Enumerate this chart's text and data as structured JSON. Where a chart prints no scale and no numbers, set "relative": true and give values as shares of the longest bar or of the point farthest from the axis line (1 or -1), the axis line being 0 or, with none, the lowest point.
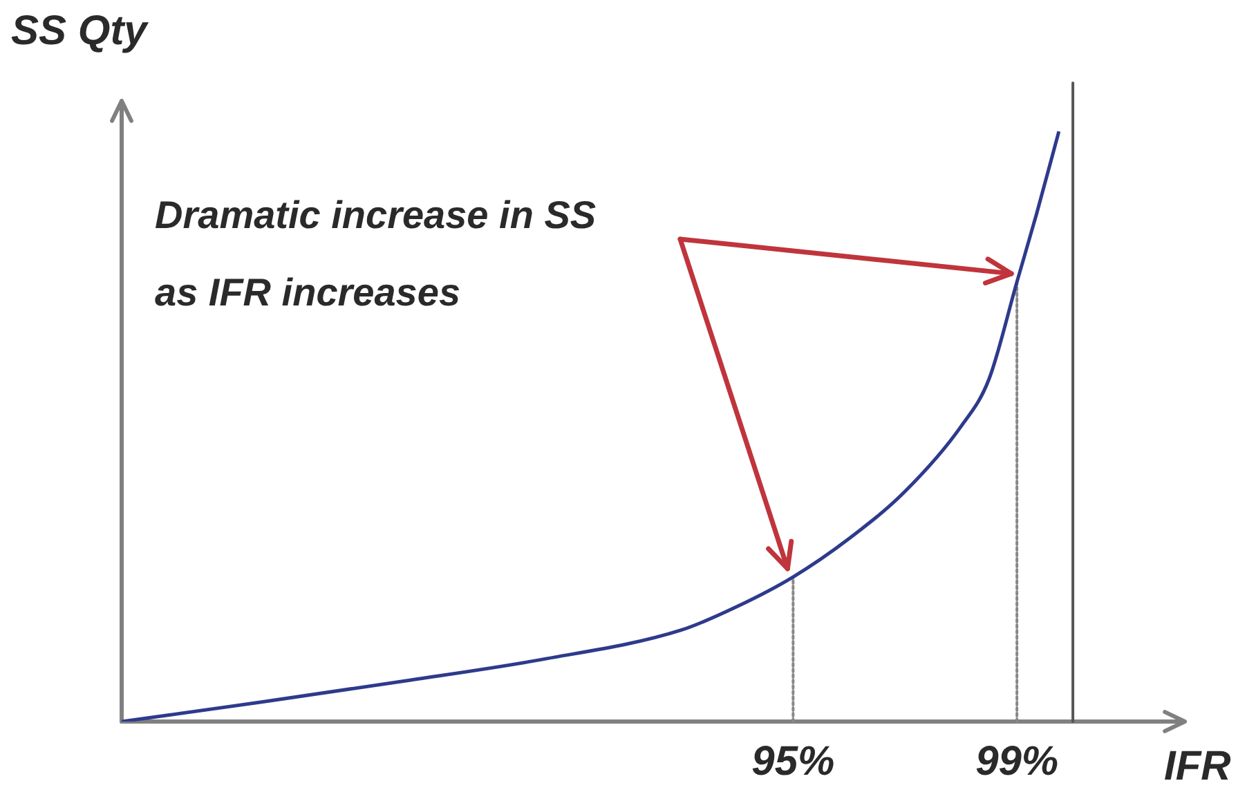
{
  "chart_data": {
    "type": "line",
    "relative": true,
    "xlabel": "IFR",
    "ylabel": "SS Qty",
    "annotations": [
      "Dramatic increase in SS as IFR increases"
    ],
    "x": [
      83,
      85.5,
      88,
      90.5,
      93,
      94,
      95,
      96,
      97,
      98,
      98.5,
      99,
      99.35,
      99.75
    ],
    "series": [
      {
        "color": "#2e3a8c",
        "values": [
          0,
          0.033,
          0.068,
          0.105,
          0.155,
          0.195,
          0.245,
          0.31,
          0.39,
          0.5,
          0.58,
          0.745,
          0.86,
          1
        ]
      }
    ],
    "xlim": [
      83,
      102
    ],
    "xticks": [
      {
        "value": 95,
        "label": "95%"
      },
      {
        "value": 99,
        "label": "99%"
      }
    ],
    "ref_lines": [
      {
        "axis": "x",
        "value": 95,
        "color": "#888888",
        "line_style": "dotted"
      },
      {
        "axis": "x",
        "value": 99,
        "color": "#888888",
        "line_style": "dotted"
      },
      {
        "axis": "x",
        "value": 100,
        "color": "#555555"
      }
    ],
    "grid": false,
    "legend": false,
    "marker": "none",
    "line_style": "solid"
  }
}
